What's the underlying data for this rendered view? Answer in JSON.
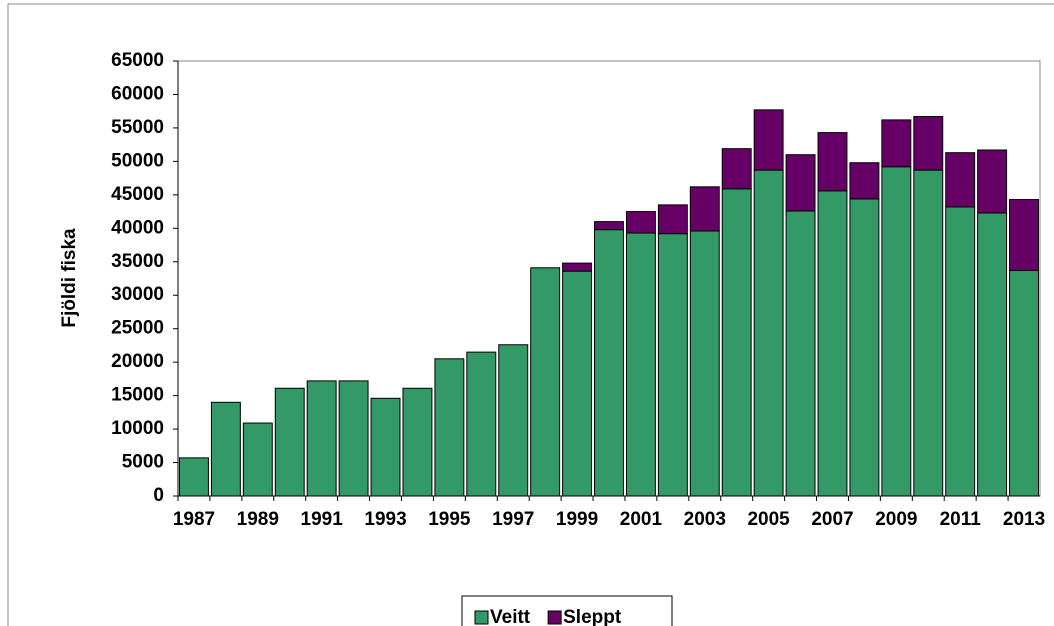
{
  "chart_data": {
    "type": "stacked_bar",
    "y_label": "Fjöldi fiska",
    "categories": [
      "1987",
      null,
      "1989",
      null,
      "1991",
      null,
      "1993",
      null,
      "1995",
      null,
      "1997",
      null,
      "1999",
      null,
      "2001",
      null,
      "2003",
      null,
      "2005",
      null,
      "2007",
      null,
      "2009",
      null,
      "2011",
      null,
      "2013"
    ],
    "series": [
      {
        "name": "Veitt",
        "color": "#339966",
        "values": [
          5700,
          14000,
          10900,
          16100,
          17200,
          17200,
          14600,
          16100,
          20500,
          21500,
          22600,
          34100,
          33600,
          39800,
          39300,
          39200,
          39600,
          45900,
          48700,
          42600,
          45600,
          44400,
          49200,
          48700,
          43200,
          42300,
          33700
        ]
      },
      {
        "name": "Sleppt",
        "color": "#660066",
        "values": [
          0,
          0,
          0,
          0,
          0,
          0,
          0,
          0,
          0,
          0,
          0,
          0,
          1200,
          1200,
          3200,
          4300,
          6600,
          6000,
          9000,
          8400,
          8700,
          5400,
          7000,
          8000,
          8100,
          9400,
          10600
        ]
      }
    ],
    "ylim": [
      0,
      65000
    ],
    "yticks": [
      0,
      5000,
      10000,
      15000,
      20000,
      25000,
      30000,
      35000,
      40000,
      45000,
      50000,
      55000,
      60000,
      65000
    ],
    "legend": "bottom"
  }
}
